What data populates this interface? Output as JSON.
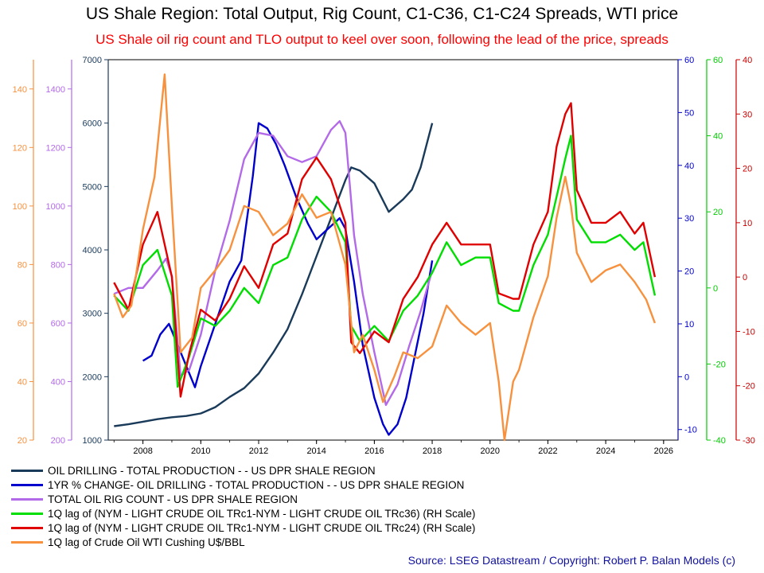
{
  "header": {
    "title": "US Shale Region: Total Output, Rig Count, C1-C36, C1-C24 Spreads, WTI price",
    "subtitle": "US Shale oil rig count and TLO output to keel over soon, following the lead of the price, spreads"
  },
  "source": "Source: LSEG Datastream / Copyright: Robert P. Balan Models (c)",
  "chart_data": {
    "type": "line",
    "title": "US Shale Region: Total Output, Rig Count, C1-C36, C1-C24 Spreads, WTI price",
    "grid": false,
    "legend_position": "bottom",
    "x_ticks": [
      "2008",
      "2010",
      "2012",
      "2014",
      "2016",
      "2018",
      "2020",
      "2022",
      "2024",
      "2026"
    ],
    "xlim": [
      2006.8,
      2026.5
    ],
    "axes": [
      {
        "id": "wti",
        "side": "left",
        "color": "#f7913d",
        "range": [
          20,
          150
        ],
        "ticks": [
          "20",
          "40",
          "60",
          "80",
          "100",
          "120",
          "140"
        ]
      },
      {
        "id": "rigs",
        "side": "left",
        "color": "#b36ae8",
        "range": [
          200,
          1500
        ],
        "ticks": [
          "200",
          "400",
          "600",
          "800",
          "1000",
          "1200",
          "1400"
        ]
      },
      {
        "id": "output",
        "side": "left",
        "color": "#1a3a5a",
        "range": [
          1000,
          7000
        ],
        "ticks": [
          "1000",
          "2000",
          "3000",
          "4000",
          "5000",
          "6000",
          "7000"
        ]
      },
      {
        "id": "yoy",
        "side": "right",
        "color": "#0000cc",
        "range": [
          -12,
          60
        ],
        "ticks": [
          "-10",
          "0",
          "10",
          "20",
          "30",
          "40",
          "50",
          "60"
        ]
      },
      {
        "id": "c36",
        "side": "right",
        "color": "#00cc00",
        "range": [
          -40,
          60
        ],
        "ticks": [
          "-40",
          "-20",
          "0",
          "20",
          "40",
          "60"
        ]
      },
      {
        "id": "c24",
        "side": "right",
        "color": "#cc0000",
        "range": [
          -30,
          40
        ],
        "ticks": [
          "-30",
          "-20",
          "-10",
          "0",
          "10",
          "20",
          "30",
          "40"
        ]
      }
    ],
    "series": [
      {
        "name": "OIL DRILLING - TOTAL PRODUCTION -  -  US DPR SHALE REGION",
        "axis": "output",
        "color": "#1a3a5a",
        "points": [
          [
            2007.0,
            1220
          ],
          [
            2007.5,
            1250
          ],
          [
            2008.0,
            1290
          ],
          [
            2008.5,
            1330
          ],
          [
            2009.0,
            1360
          ],
          [
            2009.5,
            1380
          ],
          [
            2010.0,
            1420
          ],
          [
            2010.5,
            1520
          ],
          [
            2011.0,
            1680
          ],
          [
            2011.5,
            1820
          ],
          [
            2012.0,
            2050
          ],
          [
            2012.5,
            2380
          ],
          [
            2013.0,
            2750
          ],
          [
            2013.5,
            3300
          ],
          [
            2014.0,
            3900
          ],
          [
            2014.5,
            4500
          ],
          [
            2015.0,
            5100
          ],
          [
            2015.2,
            5300
          ],
          [
            2015.5,
            5250
          ],
          [
            2016.0,
            5050
          ],
          [
            2016.5,
            4600
          ],
          [
            2017.0,
            4800
          ],
          [
            2017.3,
            4950
          ],
          [
            2017.6,
            5300
          ],
          [
            2018.0,
            6000
          ]
        ]
      },
      {
        "name": "1YR % CHANGE- OIL DRILLING - TOTAL PRODUCTION -  -  US DPR SHALE REGION",
        "axis": "yoy",
        "color": "#0000cc",
        "points": [
          [
            2008.0,
            3
          ],
          [
            2008.3,
            4
          ],
          [
            2008.6,
            8
          ],
          [
            2008.9,
            10
          ],
          [
            2009.2,
            6
          ],
          [
            2009.5,
            2
          ],
          [
            2009.8,
            -2
          ],
          [
            2010.0,
            2
          ],
          [
            2010.5,
            10
          ],
          [
            2011.0,
            18
          ],
          [
            2011.4,
            22
          ],
          [
            2011.8,
            38
          ],
          [
            2012.0,
            48
          ],
          [
            2012.3,
            47
          ],
          [
            2012.6,
            44
          ],
          [
            2012.9,
            40
          ],
          [
            2013.3,
            34
          ],
          [
            2013.7,
            29
          ],
          [
            2014.0,
            26
          ],
          [
            2014.4,
            28
          ],
          [
            2014.8,
            30
          ],
          [
            2015.0,
            28
          ],
          [
            2015.3,
            18
          ],
          [
            2015.6,
            6
          ],
          [
            2016.0,
            -4
          ],
          [
            2016.3,
            -9
          ],
          [
            2016.5,
            -11
          ],
          [
            2016.8,
            -9
          ],
          [
            2017.1,
            -4
          ],
          [
            2017.4,
            4
          ],
          [
            2017.7,
            12
          ],
          [
            2018.0,
            22
          ]
        ]
      },
      {
        "name": "TOTAL OIL RIG COUNT - US DPR SHALE REGION",
        "axis": "rigs",
        "color": "#b36ae8",
        "points": [
          [
            2007.0,
            700
          ],
          [
            2007.5,
            720
          ],
          [
            2008.0,
            720
          ],
          [
            2008.5,
            780
          ],
          [
            2008.8,
            820
          ],
          [
            2009.0,
            760
          ],
          [
            2009.3,
            420
          ],
          [
            2009.6,
            440
          ],
          [
            2010.0,
            560
          ],
          [
            2010.5,
            780
          ],
          [
            2011.0,
            950
          ],
          [
            2011.5,
            1160
          ],
          [
            2012.0,
            1250
          ],
          [
            2012.5,
            1240
          ],
          [
            2013.0,
            1170
          ],
          [
            2013.5,
            1150
          ],
          [
            2014.0,
            1170
          ],
          [
            2014.5,
            1260
          ],
          [
            2014.8,
            1290
          ],
          [
            2015.0,
            1250
          ],
          [
            2015.3,
            900
          ],
          [
            2015.6,
            700
          ],
          [
            2016.0,
            500
          ],
          [
            2016.4,
            320
          ],
          [
            2016.8,
            390
          ],
          [
            2017.2,
            520
          ],
          [
            2017.6,
            640
          ],
          [
            2018.0,
            780
          ]
        ]
      },
      {
        "name": "1Q lag of (NYM - LIGHT CRUDE OIL TRc1-NYM - LIGHT CRUDE OIL TRc36) (RH Scale)",
        "axis": "c36",
        "color": "#00dd00",
        "points": [
          [
            2007.0,
            -2
          ],
          [
            2007.5,
            -6
          ],
          [
            2008.0,
            6
          ],
          [
            2008.5,
            10
          ],
          [
            2009.0,
            -2
          ],
          [
            2009.2,
            -26
          ],
          [
            2009.6,
            -18
          ],
          [
            2010.0,
            -8
          ],
          [
            2010.5,
            -10
          ],
          [
            2011.0,
            -6
          ],
          [
            2011.5,
            0
          ],
          [
            2012.0,
            -4
          ],
          [
            2012.5,
            6
          ],
          [
            2013.0,
            8
          ],
          [
            2013.5,
            18
          ],
          [
            2014.0,
            24
          ],
          [
            2014.5,
            20
          ],
          [
            2015.0,
            12
          ],
          [
            2015.2,
            -10
          ],
          [
            2015.5,
            -14
          ],
          [
            2016.0,
            -10
          ],
          [
            2016.5,
            -14
          ],
          [
            2017.0,
            -6
          ],
          [
            2017.5,
            -2
          ],
          [
            2018.0,
            4
          ],
          [
            2018.5,
            12
          ],
          [
            2019.0,
            6
          ],
          [
            2019.5,
            8
          ],
          [
            2020.0,
            8
          ],
          [
            2020.3,
            -4
          ],
          [
            2020.8,
            -6
          ],
          [
            2021.0,
            -6
          ],
          [
            2021.5,
            6
          ],
          [
            2022.0,
            14
          ],
          [
            2022.3,
            24
          ],
          [
            2022.6,
            34
          ],
          [
            2022.8,
            40
          ],
          [
            2023.0,
            18
          ],
          [
            2023.5,
            12
          ],
          [
            2024.0,
            12
          ],
          [
            2024.5,
            14
          ],
          [
            2025.0,
            10
          ],
          [
            2025.3,
            12
          ],
          [
            2025.7,
            -2
          ]
        ]
      },
      {
        "name": "1Q lag of (NYM - LIGHT CRUDE OIL TRc1-NYM - LIGHT CRUDE OIL TRc24) (RH Scale)",
        "axis": "c24",
        "color": "#e00000",
        "points": [
          [
            2007.0,
            -1
          ],
          [
            2007.5,
            -6
          ],
          [
            2008.0,
            6
          ],
          [
            2008.5,
            12
          ],
          [
            2009.0,
            0
          ],
          [
            2009.3,
            -22
          ],
          [
            2009.6,
            -14
          ],
          [
            2010.0,
            -6
          ],
          [
            2010.5,
            -8
          ],
          [
            2011.0,
            -4
          ],
          [
            2011.5,
            2
          ],
          [
            2012.0,
            -2
          ],
          [
            2012.5,
            6
          ],
          [
            2013.0,
            8
          ],
          [
            2013.5,
            18
          ],
          [
            2014.0,
            22
          ],
          [
            2014.5,
            18
          ],
          [
            2015.0,
            10
          ],
          [
            2015.2,
            -12
          ],
          [
            2015.5,
            -14
          ],
          [
            2016.0,
            -10
          ],
          [
            2016.5,
            -12
          ],
          [
            2017.0,
            -4
          ],
          [
            2017.5,
            0
          ],
          [
            2018.0,
            6
          ],
          [
            2018.5,
            10
          ],
          [
            2019.0,
            6
          ],
          [
            2019.5,
            6
          ],
          [
            2020.0,
            6
          ],
          [
            2020.3,
            -3
          ],
          [
            2020.8,
            -4
          ],
          [
            2021.0,
            -4
          ],
          [
            2021.5,
            6
          ],
          [
            2022.0,
            12
          ],
          [
            2022.3,
            24
          ],
          [
            2022.6,
            30
          ],
          [
            2022.8,
            32
          ],
          [
            2023.0,
            16
          ],
          [
            2023.5,
            10
          ],
          [
            2024.0,
            10
          ],
          [
            2024.5,
            12
          ],
          [
            2025.0,
            8
          ],
          [
            2025.3,
            10
          ],
          [
            2025.7,
            0
          ]
        ]
      },
      {
        "name": "1Q lag of Crude Oil WTI Cushing U$/BBL",
        "axis": "wti",
        "color": "#f7913d",
        "points": [
          [
            2007.0,
            70
          ],
          [
            2007.3,
            62
          ],
          [
            2007.6,
            66
          ],
          [
            2008.0,
            92
          ],
          [
            2008.4,
            110
          ],
          [
            2008.75,
            145
          ],
          [
            2009.0,
            100
          ],
          [
            2009.3,
            50
          ],
          [
            2009.7,
            55
          ],
          [
            2010.0,
            72
          ],
          [
            2010.5,
            78
          ],
          [
            2011.0,
            85
          ],
          [
            2011.5,
            100
          ],
          [
            2012.0,
            98
          ],
          [
            2012.5,
            90
          ],
          [
            2013.0,
            94
          ],
          [
            2013.5,
            104
          ],
          [
            2014.0,
            96
          ],
          [
            2014.5,
            98
          ],
          [
            2015.0,
            80
          ],
          [
            2015.3,
            50
          ],
          [
            2015.6,
            56
          ],
          [
            2016.0,
            44
          ],
          [
            2016.3,
            33
          ],
          [
            2016.7,
            42
          ],
          [
            2017.0,
            50
          ],
          [
            2017.5,
            48
          ],
          [
            2018.0,
            52
          ],
          [
            2018.5,
            66
          ],
          [
            2019.0,
            60
          ],
          [
            2019.5,
            56
          ],
          [
            2020.0,
            60
          ],
          [
            2020.3,
            40
          ],
          [
            2020.5,
            20
          ],
          [
            2020.8,
            40
          ],
          [
            2021.0,
            44
          ],
          [
            2021.5,
            62
          ],
          [
            2022.0,
            76
          ],
          [
            2022.3,
            96
          ],
          [
            2022.6,
            110
          ],
          [
            2022.8,
            100
          ],
          [
            2023.0,
            84
          ],
          [
            2023.5,
            74
          ],
          [
            2024.0,
            78
          ],
          [
            2024.5,
            80
          ],
          [
            2025.0,
            74
          ],
          [
            2025.4,
            68
          ],
          [
            2025.7,
            60
          ]
        ]
      }
    ]
  }
}
